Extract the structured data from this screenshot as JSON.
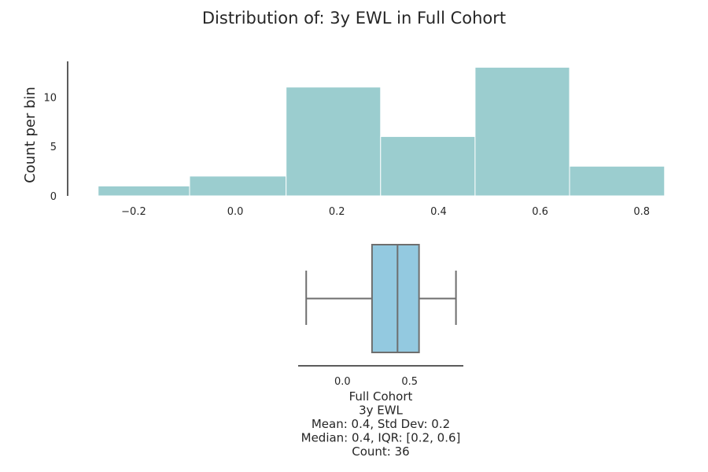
{
  "title": "Distribution of: 3y EWL in Full Cohort",
  "chart_data": [
    {
      "type": "bar",
      "subtype": "histogram",
      "ylabel": "Count per bin",
      "xlabel": "",
      "bins": [
        {
          "start": -0.27,
          "end": -0.09,
          "count": 1
        },
        {
          "start": -0.09,
          "end": 0.1,
          "count": 2
        },
        {
          "start": 0.1,
          "end": 0.286,
          "count": 11
        },
        {
          "start": 0.286,
          "end": 0.472,
          "count": 6
        },
        {
          "start": 0.472,
          "end": 0.658,
          "count": 13
        },
        {
          "start": 0.658,
          "end": 0.845,
          "count": 3
        }
      ],
      "xlim": [
        -0.33,
        0.85
      ],
      "ylim": [
        0,
        13.6
      ],
      "xticks": [
        -0.2,
        0.0,
        0.2,
        0.4,
        0.6,
        0.8
      ],
      "xtick_labels": [
        "−0.2",
        "0.0",
        "0.2",
        "0.4",
        "0.6",
        "0.8"
      ],
      "yticks": [
        0,
        5,
        10
      ],
      "ytick_labels": [
        "0",
        "5",
        "10"
      ],
      "bar_color": "#9bcdcf",
      "grid": false
    },
    {
      "type": "box",
      "orientation": "horizontal",
      "whisker_low": -0.27,
      "q1": 0.22,
      "median": 0.41,
      "q3": 0.57,
      "whisker_high": 0.845,
      "xlim": [
        -0.33,
        0.9
      ],
      "xticks": [
        0.0,
        0.5
      ],
      "xtick_labels": [
        "0.0",
        "0.5"
      ],
      "box_color": "#93c9e0",
      "line_color": "#6e6e6e",
      "caption": [
        "Full Cohort",
        "3y EWL",
        "Mean: 0.4, Std Dev: 0.2",
        "Median: 0.4, IQR: [0.2, 0.6]",
        "Count: 36"
      ]
    }
  ]
}
